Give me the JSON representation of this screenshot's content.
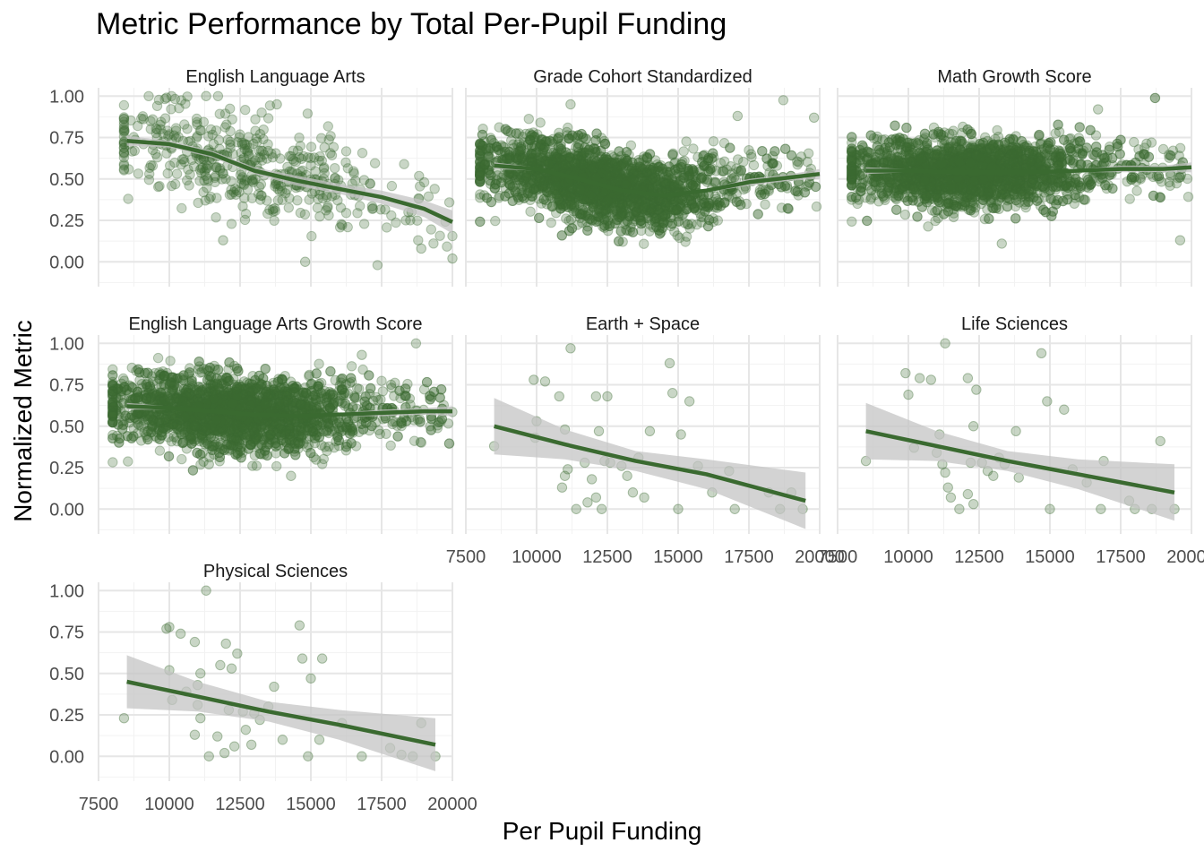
{
  "colors": {
    "point": "#3c6b33",
    "line": "#3a6a30",
    "band": "#c4c4c4",
    "grid_major": "#e6e6e6",
    "grid_minor": "#f2f2f2",
    "text": "#4d4d4d"
  },
  "chart_data": {
    "type": "scatter",
    "title": "Metric Performance by Total Per-Pupil Funding",
    "xlabel": "Per Pupil Funding",
    "ylabel": "Normalized Metric",
    "xlim": [
      7500,
      20000
    ],
    "ylim": [
      -0.15,
      1.05
    ],
    "x_ticks": [
      "7500",
      "10000",
      "12500",
      "15000",
      "17500",
      "20000"
    ],
    "y_ticks": [
      "0.00",
      "0.25",
      "0.50",
      "0.75",
      "1.00"
    ],
    "grid": true,
    "legend": "none",
    "panels": [
      {
        "name": "English Language Arts",
        "density": {
          "n": 480,
          "x_center": 12500,
          "x_spread": 2600,
          "x_min": 8400,
          "x_max": 20000,
          "y_spread": 0.14
        },
        "trend": [
          [
            8500,
            0.73
          ],
          [
            10000,
            0.71
          ],
          [
            11500,
            0.65
          ],
          [
            13000,
            0.55
          ],
          [
            14500,
            0.49
          ],
          [
            16000,
            0.44
          ],
          [
            17500,
            0.39
          ],
          [
            19000,
            0.32
          ],
          [
            20000,
            0.24
          ]
        ],
        "band_halfwidth": [
          0.03,
          0.02,
          0.02,
          0.02,
          0.03,
          0.03,
          0.04,
          0.05,
          0.07
        ],
        "points": [
          [
            20000,
            0.02
          ],
          [
            14800,
            0.0
          ],
          [
            11900,
            0.13
          ],
          [
            18900,
            0.08
          ],
          [
            13800,
            0.95
          ],
          [
            11300,
            1.0
          ],
          [
            9900,
            0.99
          ]
        ]
      },
      {
        "name": "Grade Cohort Standardized",
        "density": {
          "n": 2800,
          "x_center": 12200,
          "x_spread": 2100,
          "x_min": 8000,
          "x_max": 20000,
          "y_spread": 0.11
        },
        "trend": [
          [
            8500,
            0.58
          ],
          [
            10000,
            0.56
          ],
          [
            11500,
            0.5
          ],
          [
            13000,
            0.43
          ],
          [
            14500,
            0.4
          ],
          [
            16000,
            0.43
          ],
          [
            17500,
            0.48
          ],
          [
            19000,
            0.51
          ],
          [
            20000,
            0.53
          ]
        ],
        "band_halfwidth": [
          0.02,
          0.01,
          0.01,
          0.01,
          0.01,
          0.01,
          0.02,
          0.02,
          0.03
        ],
        "points": [
          [
            11200,
            0.95
          ],
          [
            14400,
            0.18
          ],
          [
            12600,
            0.23
          ],
          [
            17100,
            0.88
          ],
          [
            19800,
            0.87
          ]
        ]
      },
      {
        "name": "Math Growth Score",
        "density": {
          "n": 2800,
          "x_center": 12000,
          "x_spread": 2100,
          "x_min": 8000,
          "x_max": 20000,
          "y_spread": 0.1
        },
        "trend": [
          [
            8500,
            0.55
          ],
          [
            10000,
            0.55
          ],
          [
            11500,
            0.54
          ],
          [
            13000,
            0.54
          ],
          [
            14500,
            0.54
          ],
          [
            16000,
            0.55
          ],
          [
            17500,
            0.56
          ],
          [
            19000,
            0.56
          ],
          [
            20000,
            0.57
          ]
        ],
        "band_halfwidth": [
          0.02,
          0.01,
          0.01,
          0.01,
          0.01,
          0.01,
          0.02,
          0.02,
          0.03
        ],
        "points": [
          [
            13300,
            0.11
          ],
          [
            19600,
            0.13
          ],
          [
            16700,
            0.92
          ]
        ]
      },
      {
        "name": "English Language Arts Growth Score",
        "density": {
          "n": 2800,
          "x_center": 12200,
          "x_spread": 2200,
          "x_min": 8000,
          "x_max": 20000,
          "y_spread": 0.11
        },
        "trend": [
          [
            8500,
            0.62
          ],
          [
            10000,
            0.61
          ],
          [
            11500,
            0.59
          ],
          [
            13000,
            0.57
          ],
          [
            14500,
            0.56
          ],
          [
            16000,
            0.57
          ],
          [
            17500,
            0.58
          ],
          [
            19000,
            0.59
          ],
          [
            20000,
            0.59
          ]
        ],
        "band_halfwidth": [
          0.02,
          0.01,
          0.01,
          0.01,
          0.01,
          0.01,
          0.02,
          0.02,
          0.03
        ],
        "points": [
          [
            16800,
            0.93
          ],
          [
            14300,
            0.2
          ],
          [
            11400,
            0.27
          ]
        ]
      },
      {
        "name": "Earth + Space",
        "density": {
          "n": 0
        },
        "trend": [
          [
            8500,
            0.5
          ],
          [
            11000,
            0.39
          ],
          [
            13500,
            0.29
          ],
          [
            16000,
            0.21
          ],
          [
            19500,
            0.05
          ]
        ],
        "band_halfwidth": [
          0.17,
          0.09,
          0.06,
          0.09,
          0.17
        ],
        "points": [
          [
            8500,
            0.38
          ],
          [
            9900,
            0.78
          ],
          [
            10000,
            0.53
          ],
          [
            10300,
            0.77
          ],
          [
            9950,
            0.43
          ],
          [
            10800,
            0.68
          ],
          [
            11000,
            0.48
          ],
          [
            11200,
            0.97
          ],
          [
            10900,
            0.13
          ],
          [
            11100,
            0.24
          ],
          [
            11000,
            0.2
          ],
          [
            11400,
            0.0
          ],
          [
            11800,
            0.04
          ],
          [
            11950,
            0.18
          ],
          [
            12100,
            0.07
          ],
          [
            12200,
            0.47
          ],
          [
            12100,
            0.68
          ],
          [
            12500,
            0.68
          ],
          [
            12300,
            0.0
          ],
          [
            12600,
            0.28
          ],
          [
            13000,
            0.26
          ],
          [
            13200,
            0.2
          ],
          [
            13400,
            0.1
          ],
          [
            13600,
            0.31
          ],
          [
            13800,
            0.07
          ],
          [
            14000,
            0.47
          ],
          [
            14700,
            0.88
          ],
          [
            14800,
            0.7
          ],
          [
            15100,
            0.45
          ],
          [
            15400,
            0.65
          ],
          [
            15000,
            0.0
          ],
          [
            15700,
            0.26
          ],
          [
            16200,
            0.1
          ],
          [
            16800,
            0.23
          ],
          [
            17000,
            0.0
          ],
          [
            18200,
            0.1
          ],
          [
            18600,
            0.0
          ],
          [
            19000,
            0.1
          ],
          [
            19400,
            0.0
          ],
          [
            12400,
            0.29
          ],
          [
            11700,
            0.28
          ]
        ]
      },
      {
        "name": "Life Sciences",
        "density": {
          "n": 0
        },
        "trend": [
          [
            8500,
            0.47
          ],
          [
            11000,
            0.38
          ],
          [
            13500,
            0.29
          ],
          [
            16000,
            0.21
          ],
          [
            19400,
            0.1
          ]
        ],
        "band_halfwidth": [
          0.17,
          0.09,
          0.06,
          0.09,
          0.17
        ],
        "points": [
          [
            8500,
            0.29
          ],
          [
            9900,
            0.82
          ],
          [
            10000,
            0.69
          ],
          [
            10200,
            0.37
          ],
          [
            10400,
            0.79
          ],
          [
            10800,
            0.78
          ],
          [
            11300,
            1.0
          ],
          [
            11100,
            0.45
          ],
          [
            11200,
            0.27
          ],
          [
            11300,
            0.22
          ],
          [
            11400,
            0.13
          ],
          [
            11500,
            0.07
          ],
          [
            11800,
            0.0
          ],
          [
            12100,
            0.79
          ],
          [
            12200,
            0.28
          ],
          [
            12300,
            0.5
          ],
          [
            12100,
            0.09
          ],
          [
            12300,
            0.03
          ],
          [
            12400,
            0.72
          ],
          [
            12600,
            0.28
          ],
          [
            12800,
            0.23
          ],
          [
            13000,
            0.2
          ],
          [
            13200,
            0.31
          ],
          [
            13400,
            0.27
          ],
          [
            13800,
            0.47
          ],
          [
            13900,
            0.19
          ],
          [
            14700,
            0.94
          ],
          [
            14900,
            0.65
          ],
          [
            15000,
            0.0
          ],
          [
            15500,
            0.6
          ],
          [
            15800,
            0.24
          ],
          [
            16300,
            0.16
          ],
          [
            16900,
            0.29
          ],
          [
            16800,
            0.0
          ],
          [
            17800,
            0.05
          ],
          [
            18000,
            0.0
          ],
          [
            18600,
            0.0
          ],
          [
            18900,
            0.41
          ],
          [
            19400,
            0.0
          ],
          [
            11000,
            0.34
          ]
        ]
      },
      {
        "name": "Physical Sciences",
        "density": {
          "n": 0
        },
        "trend": [
          [
            8500,
            0.45
          ],
          [
            11000,
            0.36
          ],
          [
            13500,
            0.27
          ],
          [
            16000,
            0.19
          ],
          [
            19400,
            0.07
          ]
        ],
        "band_halfwidth": [
          0.16,
          0.09,
          0.06,
          0.09,
          0.16
        ],
        "points": [
          [
            8400,
            0.23
          ],
          [
            9900,
            0.77
          ],
          [
            10000,
            0.78
          ],
          [
            10000,
            0.52
          ],
          [
            10100,
            0.34
          ],
          [
            10400,
            0.74
          ],
          [
            10600,
            0.39
          ],
          [
            10900,
            0.69
          ],
          [
            10900,
            0.13
          ],
          [
            11000,
            0.43
          ],
          [
            11000,
            0.31
          ],
          [
            11100,
            0.23
          ],
          [
            11100,
            0.5
          ],
          [
            11300,
            1.0
          ],
          [
            11400,
            0.0
          ],
          [
            11700,
            0.12
          ],
          [
            11800,
            0.55
          ],
          [
            11950,
            0.02
          ],
          [
            12000,
            0.68
          ],
          [
            12100,
            0.28
          ],
          [
            12200,
            0.53
          ],
          [
            12300,
            0.06
          ],
          [
            12400,
            0.62
          ],
          [
            12700,
            0.16
          ],
          [
            12900,
            0.07
          ],
          [
            13000,
            0.26
          ],
          [
            13200,
            0.22
          ],
          [
            13500,
            0.3
          ],
          [
            13700,
            0.42
          ],
          [
            14000,
            0.1
          ],
          [
            14600,
            0.79
          ],
          [
            14700,
            0.59
          ],
          [
            14900,
            0.0
          ],
          [
            15000,
            0.47
          ],
          [
            15300,
            0.1
          ],
          [
            15400,
            0.59
          ],
          [
            16100,
            0.2
          ],
          [
            16800,
            0.0
          ],
          [
            17800,
            0.05
          ],
          [
            18200,
            0.01
          ],
          [
            18600,
            0.0
          ],
          [
            18900,
            0.2
          ],
          [
            19400,
            0.0
          ],
          [
            12600,
            0.27
          ]
        ]
      }
    ]
  }
}
